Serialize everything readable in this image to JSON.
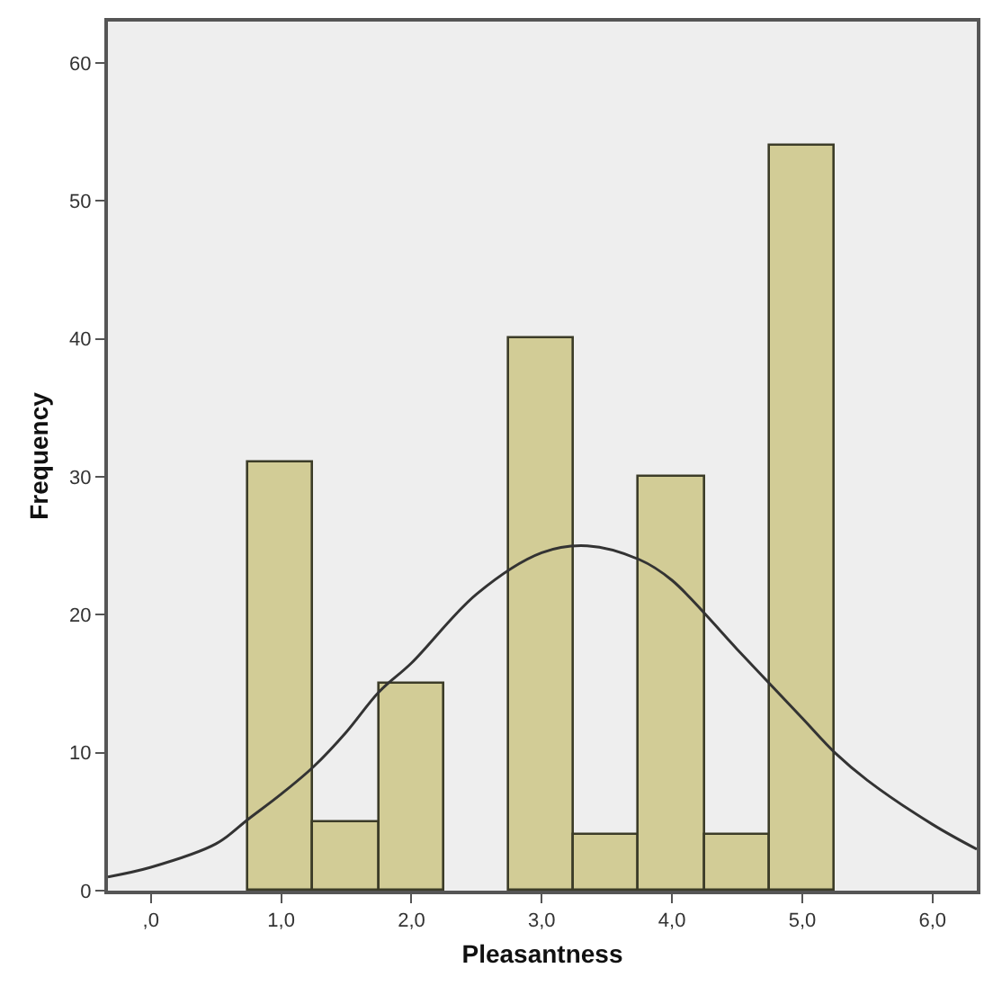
{
  "chart_data": {
    "type": "histogram",
    "xlabel": "Pleasantness",
    "ylabel": "Frequency",
    "bins": [
      0.75,
      1.25,
      1.75,
      2.25,
      2.75,
      3.25,
      3.75,
      4.25,
      4.75,
      5.25
    ],
    "values": [
      31,
      5,
      15,
      0,
      40,
      4,
      30,
      4,
      54
    ],
    "color": "#d2cc96",
    "series": [
      {
        "type": "line",
        "color": "#333333",
        "x": [
          -0.33,
          0,
          0.5,
          0.75,
          1.0,
          1.25,
          1.5,
          1.75,
          2.0,
          2.5,
          3.0,
          3.35,
          3.75,
          4.0,
          4.5,
          5.0,
          5.25,
          5.5,
          6.0,
          6.34
        ],
        "values": [
          1.0,
          1.7,
          3.4,
          5.2,
          7,
          9,
          11.5,
          14.4,
          16.5,
          21.5,
          24.5,
          25,
          24,
          22.5,
          17.5,
          12.5,
          10,
          8,
          4.8,
          3
        ]
      }
    ],
    "xlim": [
      -0.33,
      6.34
    ],
    "ylim": [
      0,
      63
    ],
    "xticks": [
      {
        "value": 0,
        "label": ",0"
      },
      {
        "value": 1,
        "label": "1,0"
      },
      {
        "value": 2,
        "label": "2,0"
      },
      {
        "value": 3,
        "label": "3,0"
      },
      {
        "value": 4,
        "label": "4,0"
      },
      {
        "value": 5,
        "label": "5,0"
      },
      {
        "value": 6,
        "label": "6,0"
      }
    ],
    "yticks": [
      0,
      10,
      20,
      30,
      40,
      50,
      60
    ],
    "grid": false,
    "marker": "none",
    "line_style": "solid"
  }
}
